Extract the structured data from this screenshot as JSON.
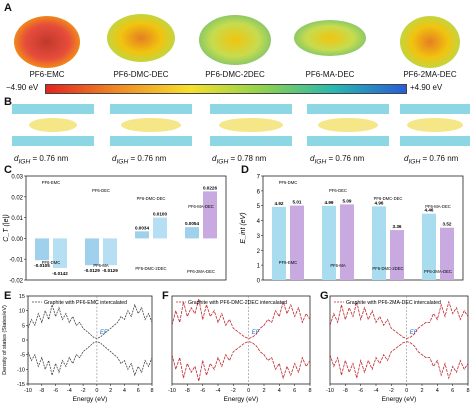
{
  "panels": {
    "A": "A",
    "B": "B",
    "C": "C",
    "D": "D",
    "E": "E",
    "F": "F",
    "G": "G"
  },
  "panelA": {
    "molecules": [
      "PF6-EMC",
      "PF6-DMC-DEC",
      "PF6-DMC-2DEC",
      "PF6-MA-DEC",
      "PF6-2MA-DEC"
    ],
    "colorbar_min": "−4.90 eV",
    "colorbar_max": "+4.90 eV"
  },
  "panelB": {
    "d_values": [
      "= 0.76 nm",
      "= 0.76 nm",
      "= 0.78 nm",
      "= 0.76 nm",
      "= 0.76 nm"
    ],
    "d_symbol": "d",
    "d_sub": "IGH"
  },
  "chart_data": [
    {
      "type": "bar",
      "panel": "C",
      "ylabel": "C_T (|e|)",
      "ylim": [
        -0.02,
        0.03
      ],
      "yticks": [
        "-0.02",
        "-0.01",
        "0.00",
        "0.01",
        "0.02",
        "0.03"
      ],
      "series": [
        {
          "values": [
            -0.0105,
            -0.0129,
            0.0034,
            0.0054
          ]
        },
        {
          "values": [
            -0.0142,
            -0.0129,
            0.01,
            0.0226
          ]
        }
      ],
      "data_labels": [
        "-0.0105",
        "-0.0142",
        "-0.0129",
        "-0.0129",
        "0.0034",
        "0.0100",
        "0.0054",
        "0.0226"
      ],
      "annotations": [
        "PF6-EMC",
        "PF6-DMC",
        "PF6-DEC",
        "PF6-MA",
        "PF6-DMC-DEC",
        "PF6-DMC-2DEC",
        "PF6-MA-DEC",
        "PF6-2MA-DEC"
      ]
    },
    {
      "type": "bar",
      "panel": "D",
      "ylabel": "E_int (eV)",
      "ylim": [
        0,
        7
      ],
      "yticks": [
        "0",
        "1",
        "2",
        "3",
        "4",
        "5",
        "6",
        "7"
      ],
      "series": [
        {
          "values": [
            4.92,
            4.99,
            4.96,
            4.46
          ]
        },
        {
          "values": [
            5.01,
            5.09,
            3.36,
            3.52
          ]
        }
      ],
      "data_labels": [
        "4.92",
        "5.01",
        "4.99",
        "5.09",
        "4.96",
        "3.36",
        "4.46",
        "3.52"
      ],
      "annotations": [
        "PF6-DMC",
        "PF6-EMC",
        "PF6-DEC",
        "PF6-MA",
        "PF6-DMC-DEC",
        "PF6-DMC-2DEC",
        "PF6-MA-DEC",
        "PF6-2MA-DEC"
      ]
    },
    {
      "type": "line",
      "panel": "E",
      "xlabel": "Energy (eV)",
      "ylabel": "Density of states (States/eV)",
      "xlim": [
        -10,
        8
      ],
      "ylim": [
        -15,
        15
      ],
      "xticks": [
        "-10",
        "-8",
        "-6",
        "-4",
        "-2",
        "0",
        "2",
        "4",
        "6",
        "8"
      ],
      "yticks": [
        "-15",
        "-10",
        "-5",
        "0",
        "5",
        "10",
        "15"
      ],
      "legend": "Graphite with PF6-EMC intercalated",
      "fermi_label": "EF",
      "series": [
        {
          "x": [
            -10,
            -9.5,
            -9,
            -8.5,
            -8,
            -7.5,
            -7,
            -6.5,
            -6,
            -5.5,
            -5,
            -4.5,
            -4,
            -3.5,
            -3,
            -2.5,
            -2,
            -1.5,
            -1,
            -0.5,
            0,
            0.5,
            1,
            1.5,
            2,
            2.5,
            3,
            3.5,
            4,
            4.5,
            5,
            5.5,
            6,
            6.5,
            7,
            7.5,
            8
          ],
          "y": [
            4,
            7,
            5,
            9,
            6,
            10,
            7,
            12,
            8,
            11,
            7,
            9,
            6,
            8,
            5,
            6,
            4,
            3,
            2,
            1,
            0.5,
            1,
            2,
            3,
            4,
            5,
            6,
            8,
            7,
            10,
            8,
            12,
            9,
            11,
            7,
            9,
            6
          ]
        },
        {
          "x": [
            -10,
            -9.5,
            -9,
            -8.5,
            -8,
            -7.5,
            -7,
            -6.5,
            -6,
            -5.5,
            -5,
            -4.5,
            -4,
            -3.5,
            -3,
            -2.5,
            -2,
            -1.5,
            -1,
            -0.5,
            0,
            0.5,
            1,
            1.5,
            2,
            2.5,
            3,
            3.5,
            4,
            4.5,
            5,
            5.5,
            6,
            6.5,
            7,
            7.5,
            8
          ],
          "y": [
            -4,
            -7,
            -5,
            -9,
            -6,
            -10,
            -7,
            -12,
            -8,
            -11,
            -7,
            -9,
            -6,
            -8,
            -5,
            -6,
            -4,
            -3,
            -2,
            -1,
            -0.5,
            -1,
            -2,
            -3,
            -4,
            -5,
            -6,
            -8,
            -7,
            -10,
            -8,
            -12,
            -9,
            -11,
            -7,
            -9,
            -6
          ]
        }
      ]
    },
    {
      "type": "line",
      "panel": "F",
      "xlabel": "Energy (eV)",
      "xlim": [
        -10,
        8
      ],
      "ylim": [
        -15,
        15
      ],
      "xticks": [
        "-10",
        "-8",
        "-6",
        "-4",
        "-2",
        "0",
        "2",
        "4",
        "6",
        "8"
      ],
      "legend": "Graphite with PF6-DMC-2DEC intercalated",
      "fermi_label": "EF",
      "series": [
        {
          "x": [
            -10,
            -9.5,
            -9,
            -8.5,
            -8,
            -7.5,
            -7,
            -6.5,
            -6,
            -5.5,
            -5,
            -4.5,
            -4,
            -3.5,
            -3,
            -2.5,
            -2,
            -1.5,
            -1,
            -0.5,
            0,
            0.5,
            1,
            1.5,
            2,
            2.5,
            3,
            3.5,
            4,
            4.5,
            5,
            5.5,
            6,
            6.5,
            7,
            7.5,
            8
          ],
          "y": [
            5,
            10,
            6,
            13,
            8,
            11,
            9,
            14,
            7,
            12,
            8,
            10,
            6,
            9,
            5,
            7,
            4,
            3,
            2,
            1,
            0.5,
            1,
            2,
            4,
            5,
            7,
            6,
            10,
            8,
            13,
            9,
            12,
            8,
            11,
            6,
            9,
            7
          ]
        },
        {
          "x": [
            -10,
            -9.5,
            -9,
            -8.5,
            -8,
            -7.5,
            -7,
            -6.5,
            -6,
            -5.5,
            -5,
            -4.5,
            -4,
            -3.5,
            -3,
            -2.5,
            -2,
            -1.5,
            -1,
            -0.5,
            0,
            0.5,
            1,
            1.5,
            2,
            2.5,
            3,
            3.5,
            4,
            4.5,
            5,
            5.5,
            6,
            6.5,
            7,
            7.5,
            8
          ],
          "y": [
            -5,
            -10,
            -6,
            -13,
            -8,
            -11,
            -9,
            -14,
            -7,
            -12,
            -8,
            -10,
            -6,
            -9,
            -5,
            -7,
            -4,
            -3,
            -2,
            -1,
            -0.5,
            -1,
            -2,
            -4,
            -5,
            -7,
            -6,
            -10,
            -8,
            -13,
            -9,
            -12,
            -8,
            -11,
            -6,
            -9,
            -7
          ]
        }
      ]
    },
    {
      "type": "line",
      "panel": "G",
      "xlabel": "Energy (eV)",
      "xlim": [
        -10,
        8
      ],
      "ylim": [
        -15,
        15
      ],
      "xticks": [
        "-10",
        "-8",
        "-6",
        "-4",
        "-2",
        "0",
        "2",
        "4",
        "6",
        "8"
      ],
      "legend": "Graphite with PF6-2MA-DEC intercalated",
      "fermi_label": "EF",
      "series": [
        {
          "x": [
            -10,
            -9.5,
            -9,
            -8.5,
            -8,
            -7.5,
            -7,
            -6.5,
            -6,
            -5.5,
            -5,
            -4.5,
            -4,
            -3.5,
            -3,
            -2.5,
            -2,
            -1.5,
            -1,
            -0.5,
            0,
            0.5,
            1,
            1.5,
            2,
            2.5,
            3,
            3.5,
            4,
            4.5,
            5,
            5.5,
            6,
            6.5,
            7,
            7.5,
            8
          ],
          "y": [
            5,
            9,
            6,
            12,
            7,
            11,
            8,
            13,
            7,
            11,
            7,
            10,
            6,
            8,
            5,
            7,
            4,
            3,
            2,
            1,
            0.5,
            1,
            2,
            4,
            5,
            6,
            6,
            9,
            7,
            12,
            8,
            13,
            9,
            11,
            7,
            10,
            8
          ]
        },
        {
          "x": [
            -10,
            -9.5,
            -9,
            -8.5,
            -8,
            -7.5,
            -7,
            -6.5,
            -6,
            -5.5,
            -5,
            -4.5,
            -4,
            -3.5,
            -3,
            -2.5,
            -2,
            -1.5,
            -1,
            -0.5,
            0,
            0.5,
            1,
            1.5,
            2,
            2.5,
            3,
            3.5,
            4,
            4.5,
            5,
            5.5,
            6,
            6.5,
            7,
            7.5,
            8
          ],
          "y": [
            -5,
            -9,
            -6,
            -12,
            -7,
            -11,
            -8,
            -13,
            -7,
            -11,
            -7,
            -10,
            -6,
            -8,
            -5,
            -7,
            -4,
            -3,
            -2,
            -1,
            -0.5,
            -1,
            -2,
            -4,
            -5,
            -6,
            -6,
            -9,
            -7,
            -12,
            -8,
            -13,
            -9,
            -11,
            -7,
            -10,
            -8
          ]
        }
      ]
    }
  ],
  "colors": {
    "C_bar": "#9fd0ec",
    "D_bar_light": "#a9dcef",
    "D_bar_purple": "#c8a9e0",
    "dos_gray": "#444444",
    "dos_red": "#c0292f",
    "fermi_blue": "#1f6fd0"
  }
}
